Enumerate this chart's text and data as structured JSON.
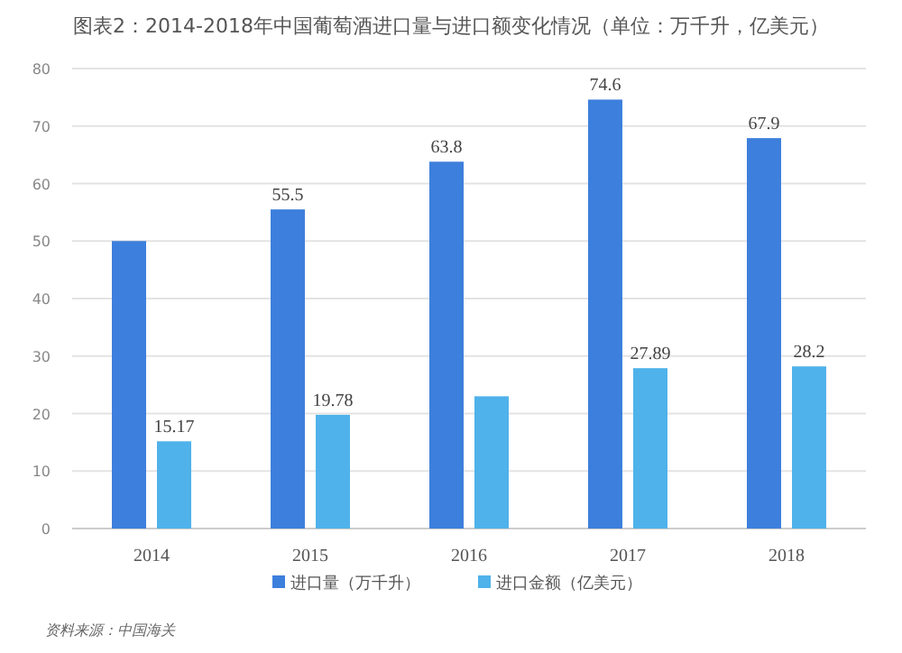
{
  "chart_data": {
    "type": "bar",
    "title": "图表2：2014-2018年中国葡萄酒进口量与进口额变化情况（单位：万千升，亿美元）",
    "categories": [
      "2014",
      "2015",
      "2016",
      "2017",
      "2018"
    ],
    "series": [
      {
        "name": "进口量（万千升）",
        "color": "#3d7fdc",
        "values": [
          50,
          55.5,
          63.8,
          74.6,
          67.9
        ],
        "value_labels": [
          null,
          "55.5",
          "63.8",
          "74.6",
          "67.9"
        ]
      },
      {
        "name": "进口金额（亿美元）",
        "color": "#4fb2ea",
        "values": [
          15.17,
          19.78,
          23,
          27.89,
          28.2
        ],
        "value_labels": [
          "15.17",
          "19.78",
          null,
          "27.89",
          "28.2"
        ]
      }
    ],
    "ylim": [
      0,
      80
    ],
    "yticks": [
      0,
      10,
      20,
      30,
      40,
      50,
      60,
      70,
      80
    ],
    "grid": "y",
    "legend": "bottom",
    "annotations": [
      "资料来源：中国海关"
    ]
  }
}
